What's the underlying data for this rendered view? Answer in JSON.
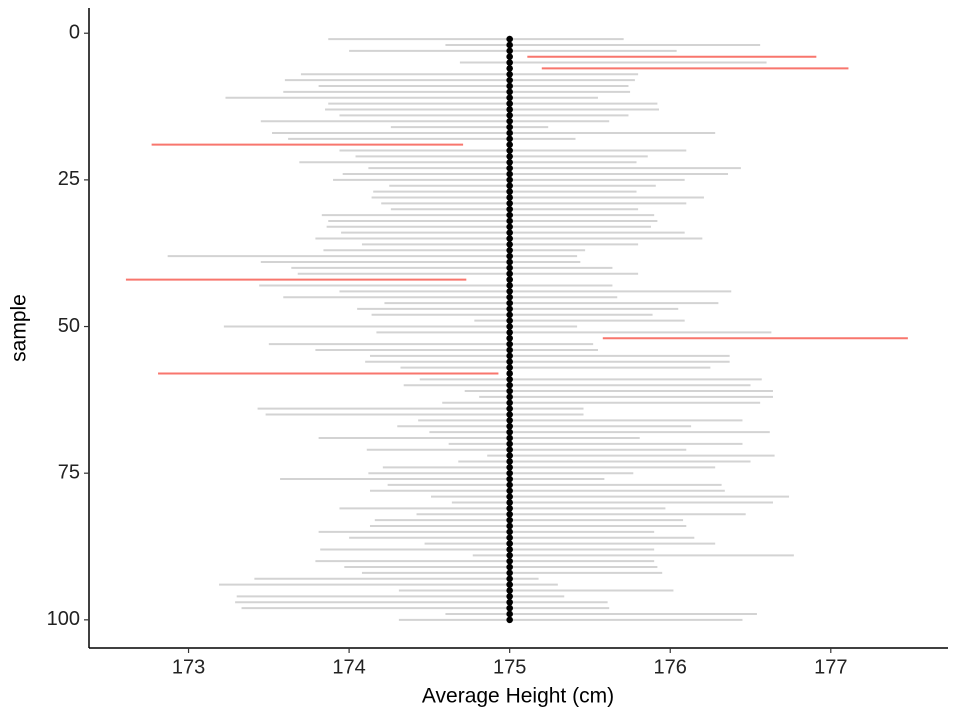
{
  "chart_data": {
    "type": "interval",
    "xlabel": "Average Height (cm)",
    "ylabel": "sample",
    "xlim": [
      172.38,
      177.73
    ],
    "xticks": [
      173,
      174,
      175,
      176,
      177
    ],
    "ylim": [
      -4.3,
      104.8
    ],
    "yticks": [
      0,
      25,
      50,
      75,
      100
    ],
    "y_reversed": true,
    "color": "#d3d3d3",
    "miss_color": "#f8766d",
    "point_color": "#000000",
    "samples": [
      1,
      2,
      3,
      4,
      5,
      6,
      7,
      8,
      9,
      10,
      11,
      12,
      13,
      14,
      15,
      16,
      17,
      18,
      19,
      20,
      21,
      22,
      23,
      24,
      25,
      26,
      27,
      28,
      29,
      30,
      31,
      32,
      33,
      34,
      35,
      36,
      37,
      38,
      39,
      40,
      41,
      42,
      43,
      44,
      45,
      46,
      47,
      48,
      49,
      50,
      51,
      52,
      53,
      54,
      55,
      56,
      57,
      58,
      59,
      60,
      61,
      62,
      63,
      64,
      65,
      66,
      67,
      68,
      69,
      70,
      71,
      72,
      73,
      74,
      75,
      76,
      77,
      78,
      79,
      80,
      81,
      82,
      83,
      84,
      85,
      86,
      87,
      88,
      89,
      90,
      91,
      92,
      93,
      94,
      95,
      96,
      97,
      98,
      99,
      100
    ],
    "lower": [
      173.87,
      174.6,
      174.0,
      175.11,
      174.69,
      175.2,
      173.7,
      173.6,
      173.81,
      173.59,
      173.23,
      173.87,
      173.85,
      173.94,
      173.45,
      174.26,
      173.52,
      173.62,
      172.77,
      173.94,
      174.04,
      173.69,
      174.12,
      173.96,
      173.9,
      174.25,
      174.15,
      174.14,
      174.2,
      174.26,
      173.83,
      173.87,
      173.86,
      173.95,
      173.79,
      174.08,
      173.84,
      172.87,
      173.45,
      173.64,
      173.68,
      172.61,
      173.44,
      173.94,
      173.59,
      174.22,
      174.05,
      174.14,
      174.78,
      173.22,
      174.17,
      175.58,
      173.5,
      173.79,
      174.13,
      174.1,
      174.32,
      172.81,
      174.44,
      174.34,
      174.72,
      174.81,
      174.58,
      173.43,
      173.48,
      174.43,
      174.3,
      174.5,
      173.81,
      174.62,
      174.11,
      174.86,
      174.68,
      174.21,
      174.12,
      173.57,
      174.24,
      174.13,
      174.51,
      174.64,
      173.94,
      174.42,
      174.16,
      174.13,
      173.81,
      174.0,
      174.47,
      173.82,
      174.77,
      173.79,
      173.97,
      174.08,
      173.41,
      173.19,
      174.31,
      173.3,
      173.29,
      173.33,
      174.6,
      174.31
    ],
    "upper": [
      175.71,
      176.56,
      176.04,
      176.91,
      176.6,
      177.11,
      175.8,
      175.78,
      175.74,
      175.75,
      175.55,
      175.92,
      175.93,
      175.74,
      175.62,
      175.24,
      176.28,
      175.41,
      174.71,
      176.1,
      175.86,
      175.79,
      176.44,
      176.36,
      176.09,
      175.91,
      175.79,
      176.21,
      176.1,
      175.8,
      175.9,
      175.92,
      175.88,
      176.09,
      176.2,
      175.8,
      175.47,
      175.42,
      175.44,
      175.64,
      175.8,
      174.73,
      175.64,
      176.38,
      175.67,
      176.3,
      176.05,
      175.89,
      176.09,
      175.42,
      176.63,
      177.48,
      175.52,
      175.55,
      176.37,
      176.37,
      176.25,
      174.93,
      176.57,
      176.5,
      176.64,
      176.64,
      176.56,
      175.46,
      175.46,
      176.45,
      176.13,
      176.62,
      175.81,
      176.45,
      176.1,
      176.65,
      176.5,
      176.28,
      175.77,
      175.59,
      176.32,
      176.34,
      176.74,
      176.64,
      175.97,
      176.47,
      176.08,
      176.1,
      175.9,
      176.15,
      176.28,
      175.9,
      176.77,
      175.9,
      175.92,
      175.95,
      175.18,
      175.3,
      176.02,
      175.34,
      175.61,
      175.62,
      176.54,
      176.45
    ],
    "points": [
      175,
      175,
      175,
      175,
      175,
      175,
      175,
      175,
      175,
      175,
      175,
      175,
      175,
      175,
      175,
      175,
      175,
      175,
      175,
      175,
      175,
      175,
      175,
      175,
      175,
      175,
      175,
      175,
      175,
      175,
      175,
      175,
      175,
      175,
      175,
      175,
      175,
      175,
      175,
      175,
      175,
      175,
      175,
      175,
      175,
      175,
      175,
      175,
      175,
      175,
      175,
      175,
      175,
      175,
      175,
      175,
      175,
      175,
      175,
      175,
      175,
      175,
      175,
      175,
      175,
      175,
      175,
      175,
      175,
      175,
      175,
      175,
      175,
      175,
      175,
      175,
      175,
      175,
      175,
      175,
      175,
      175,
      175,
      175,
      175,
      175,
      175,
      175,
      175,
      175,
      175,
      175,
      175,
      175,
      175,
      175,
      175,
      175,
      175,
      175
    ]
  }
}
